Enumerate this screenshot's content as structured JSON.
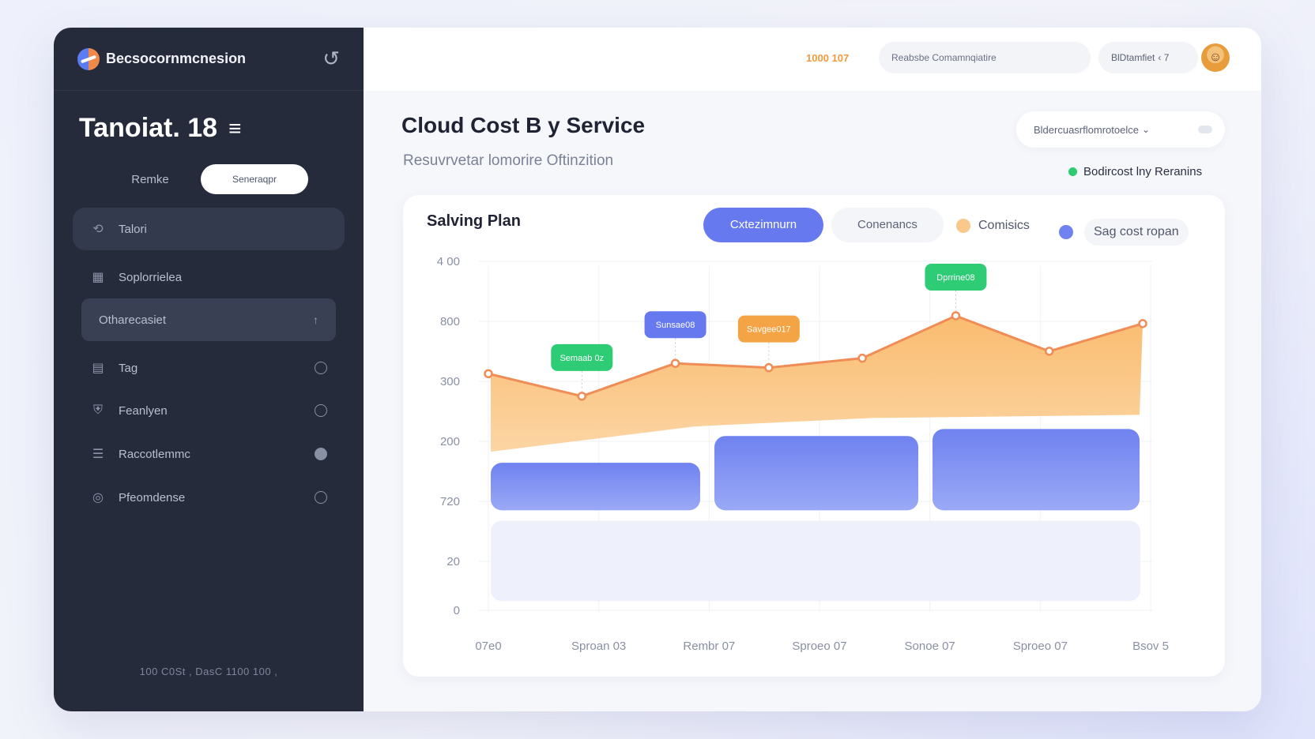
{
  "sidebar": {
    "brand": "Becsocornmcnesion",
    "title": "Tanoiat. 18",
    "toggle": {
      "option1": "Remke",
      "option2": "Seneraqpr"
    },
    "items": [
      {
        "label": "Talori",
        "icon": "refresh-icon"
      },
      {
        "label": "Soplorrielea",
        "icon": "grid-icon"
      },
      {
        "label": "Otharecasiet",
        "icon": "none"
      },
      {
        "label": "Tag",
        "icon": "tag-icon"
      },
      {
        "label": "Feanlyen",
        "icon": "shield-icon"
      },
      {
        "label": "Raccotlemmc",
        "icon": "stack-icon"
      },
      {
        "label": "Pfeomdense",
        "icon": "coin-icon"
      }
    ],
    "footer": "100  C0St ,  DasC  1100  100 ,"
  },
  "topbar": {
    "orange_text": "1000 107",
    "search_value": "Reabsbe Comamnqiatire",
    "pill_label": "BlDtamfiet",
    "pill_extra": "‹  7"
  },
  "main": {
    "title": "Cloud Cost B y Service",
    "subtitle": "Resuvrvetar lomorire Oftinzition",
    "filter_label": "Bldercuasrflomrotoelce",
    "status_text": "Bodircost lny Reranins"
  },
  "card": {
    "title": "Salving Plan",
    "seg_primary": "Cxtezimnurn",
    "seg_secondary": "Conenancs",
    "legend1": "Comisics",
    "legend2": "Sag cost ropan"
  },
  "colors": {
    "sidebar_bg": "#262b3c",
    "accent_blue": "#6679ef",
    "accent_orange": "#f7b561",
    "tooltip_green": "#2fcc76",
    "status_green": "#2ecc71"
  },
  "chart_data": {
    "type": "area",
    "y_tick_labels": [
      "4 00",
      "800",
      "300",
      "200",
      "720",
      "20",
      "0"
    ],
    "x_tick_labels": [
      "07e0",
      "Sproan 03",
      "Rembr 07",
      "Sproeo 07",
      "Sonoe 07",
      "Sproeo 07",
      "Bsov 5"
    ],
    "ylim": [
      0,
      400
    ],
    "grid": true,
    "line": {
      "x": [
        0,
        1,
        2,
        3,
        4,
        5,
        6,
        7
      ],
      "y": [
        270,
        244,
        282,
        277,
        288,
        337,
        296,
        328
      ]
    },
    "blocks": [
      {
        "series": "Sag cost ropan",
        "segments": [
          {
            "from": 0,
            "to": 2,
            "bottom": 112,
            "top": 167
          },
          {
            "from": 2,
            "to": 4,
            "bottom": 112,
            "top": 198
          },
          {
            "from": 4,
            "to": 6,
            "bottom": 112,
            "top": 206
          }
        ]
      },
      {
        "series": "base",
        "segments": [
          {
            "from": 0,
            "to": 6,
            "bottom": 7,
            "top": 100
          }
        ]
      }
    ],
    "annotations": [
      {
        "label": "Semaab 0z",
        "x": 1,
        "color": "#2fcc76"
      },
      {
        "label": "Sunsae08",
        "x": 2,
        "color": "#6679ef"
      },
      {
        "label": "Savgee017",
        "x": 3,
        "color": "#f5a445"
      },
      {
        "label": "Dprrine08",
        "x": 5,
        "color": "#2fcc76"
      }
    ]
  }
}
